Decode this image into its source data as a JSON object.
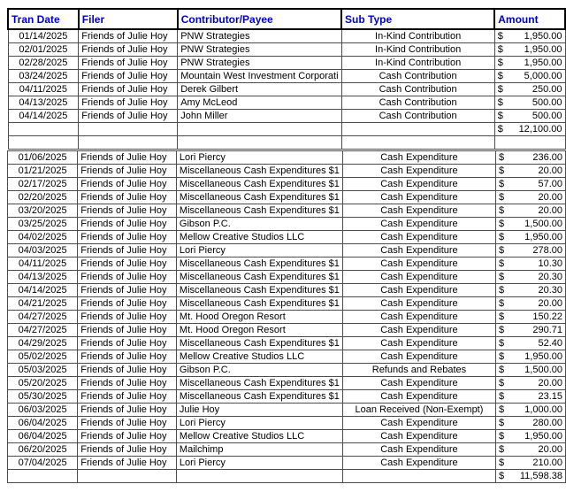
{
  "sheet": {
    "columns": [
      "Tran Date",
      "Filer",
      "Contributor/Payee",
      "Sub Type",
      "Amount"
    ],
    "currency": "$",
    "colors": {
      "header_text": "#0000cc",
      "grid_line": "#4d4d4d",
      "header_border": "#000000",
      "background": "#ffffff",
      "body_text": "#000000"
    },
    "sections": [
      {
        "rows": [
          {
            "date": "01/14/2025",
            "filer": "Friends of Julie Hoy",
            "payee": "PNW Strategies",
            "subtype": "In-Kind Contribution",
            "amount": "1,950.00"
          },
          {
            "date": "02/01/2025",
            "filer": "Friends of Julie Hoy",
            "payee": "PNW Strategies",
            "subtype": "In-Kind Contribution",
            "amount": "1,950.00"
          },
          {
            "date": "02/28/2025",
            "filer": "Friends of Julie Hoy",
            "payee": "PNW Strategies",
            "subtype": "In-Kind Contribution",
            "amount": "1,950.00"
          },
          {
            "date": "03/24/2025",
            "filer": "Friends of Julie Hoy",
            "payee": "Mountain West Investment Corporati",
            "subtype": "Cash Contribution",
            "amount": "5,000.00"
          },
          {
            "date": "04/11/2025",
            "filer": "Friends of Julie Hoy",
            "payee": "Derek Gilbert",
            "subtype": "Cash Contribution",
            "amount": "250.00"
          },
          {
            "date": "04/13/2025",
            "filer": "Friends of Julie Hoy",
            "payee": "Amy McLeod",
            "subtype": "Cash Contribution",
            "amount": "500.00"
          },
          {
            "date": "04/14/2025",
            "filer": "Friends of Julie Hoy",
            "payee": "John Miller",
            "subtype": "Cash Contribution",
            "amount": "500.00"
          }
        ],
        "total": "12,100.00"
      },
      {
        "rows": [
          {
            "date": "01/06/2025",
            "filer": "Friends of Julie Hoy",
            "payee": "Lori Piercy",
            "subtype": "Cash Expenditure",
            "amount": "236.00"
          },
          {
            "date": "01/21/2025",
            "filer": "Friends of Julie Hoy",
            "payee": "Miscellaneous Cash Expenditures $1",
            "subtype": "Cash Expenditure",
            "amount": "20.00"
          },
          {
            "date": "02/17/2025",
            "filer": "Friends of Julie Hoy",
            "payee": "Miscellaneous Cash Expenditures $1",
            "subtype": "Cash Expenditure",
            "amount": "57.00"
          },
          {
            "date": "02/20/2025",
            "filer": "Friends of Julie Hoy",
            "payee": "Miscellaneous Cash Expenditures $1",
            "subtype": "Cash Expenditure",
            "amount": "20.00"
          },
          {
            "date": "03/20/2025",
            "filer": "Friends of Julie Hoy",
            "payee": "Miscellaneous Cash Expenditures $1",
            "subtype": "Cash Expenditure",
            "amount": "20.00"
          },
          {
            "date": "03/25/2025",
            "filer": "Friends of Julie Hoy",
            "payee": "Gibson P.C.",
            "subtype": "Cash Expenditure",
            "amount": "1,500.00"
          },
          {
            "date": "04/02/2025",
            "filer": "Friends of Julie Hoy",
            "payee": "Mellow Creative Studios LLC",
            "subtype": "Cash Expenditure",
            "amount": "1,950.00"
          },
          {
            "date": "04/03/2025",
            "filer": "Friends of Julie Hoy",
            "payee": "Lori Piercy",
            "subtype": "Cash Expenditure",
            "amount": "278.00"
          },
          {
            "date": "04/11/2025",
            "filer": "Friends of Julie Hoy",
            "payee": "Miscellaneous Cash Expenditures $1",
            "subtype": "Cash Expenditure",
            "amount": "10.30"
          },
          {
            "date": "04/13/2025",
            "filer": "Friends of Julie Hoy",
            "payee": "Miscellaneous Cash Expenditures $1",
            "subtype": "Cash Expenditure",
            "amount": "20.30"
          },
          {
            "date": "04/14/2025",
            "filer": "Friends of Julie Hoy",
            "payee": "Miscellaneous Cash Expenditures $1",
            "subtype": "Cash Expenditure",
            "amount": "20.30"
          },
          {
            "date": "04/21/2025",
            "filer": "Friends of Julie Hoy",
            "payee": "Miscellaneous Cash Expenditures $1",
            "subtype": "Cash Expenditure",
            "amount": "20.00"
          },
          {
            "date": "04/27/2025",
            "filer": "Friends of Julie Hoy",
            "payee": "Mt. Hood Oregon Resort",
            "subtype": "Cash Expenditure",
            "amount": "150.22"
          },
          {
            "date": "04/27/2025",
            "filer": "Friends of Julie Hoy",
            "payee": "Mt. Hood Oregon Resort",
            "subtype": "Cash Expenditure",
            "amount": "290.71"
          },
          {
            "date": "04/29/2025",
            "filer": "Friends of Julie Hoy",
            "payee": "Miscellaneous Cash Expenditures $1",
            "subtype": "Cash Expenditure",
            "amount": "52.40"
          },
          {
            "date": "05/02/2025",
            "filer": "Friends of Julie Hoy",
            "payee": "Mellow Creative Studios LLC",
            "subtype": "Cash Expenditure",
            "amount": "1,950.00"
          },
          {
            "date": "05/03/2025",
            "filer": "Friends of Julie Hoy",
            "payee": "Gibson P.C.",
            "subtype": "Refunds and Rebates",
            "amount": "1,500.00"
          },
          {
            "date": "05/20/2025",
            "filer": "Friends of Julie Hoy",
            "payee": "Miscellaneous Cash Expenditures $1",
            "subtype": "Cash Expenditure",
            "amount": "20.00"
          },
          {
            "date": "05/30/2025",
            "filer": "Friends of Julie Hoy",
            "payee": "Miscellaneous Cash Expenditures $1",
            "subtype": "Cash Expenditure",
            "amount": "23.15"
          },
          {
            "date": "06/03/2025",
            "filer": "Friends of Julie Hoy",
            "payee": "Julie Hoy",
            "subtype": "Loan Received (Non-Exempt)",
            "amount": "1,000.00"
          },
          {
            "date": "06/04/2025",
            "filer": "Friends of Julie Hoy",
            "payee": "Lori Piercy",
            "subtype": "Cash Expenditure",
            "amount": "280.00"
          },
          {
            "date": "06/04/2025",
            "filer": "Friends of Julie Hoy",
            "payee": "Mellow Creative Studios LLC",
            "subtype": "Cash Expenditure",
            "amount": "1,950.00"
          },
          {
            "date": "06/20/2025",
            "filer": "Friends of Julie Hoy",
            "payee": "Mailchimp",
            "subtype": "Cash Expenditure",
            "amount": "20.00"
          },
          {
            "date": "07/04/2025",
            "filer": "Friends of Julie Hoy",
            "payee": "Lori Piercy",
            "subtype": "Cash Expenditure",
            "amount": "210.00"
          }
        ],
        "total": "11,598.38"
      }
    ]
  }
}
